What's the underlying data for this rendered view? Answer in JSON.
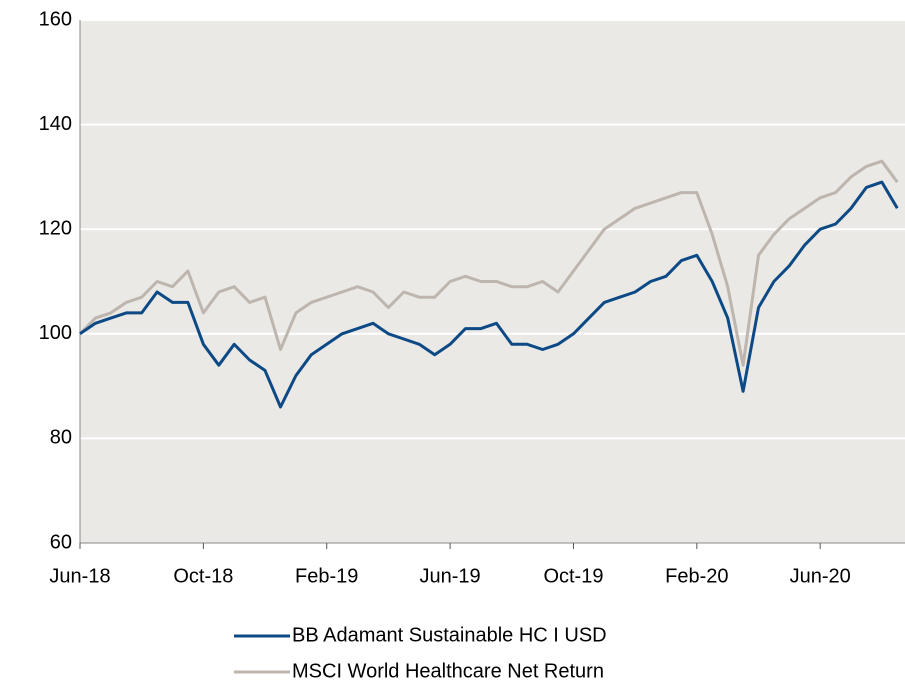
{
  "chart_data": {
    "type": "line",
    "categories": [
      "Jun-18",
      null,
      null,
      null,
      null,
      null,
      null,
      null,
      "Oct-18",
      null,
      null,
      null,
      null,
      null,
      null,
      null,
      "Feb-19",
      null,
      null,
      null,
      null,
      null,
      null,
      null,
      "Jun-19",
      null,
      null,
      null,
      null,
      null,
      null,
      null,
      "Oct-19",
      null,
      null,
      null,
      null,
      null,
      null,
      null,
      "Feb-20",
      null,
      null,
      null,
      null,
      null,
      null,
      null,
      "Jun-20",
      null,
      null,
      null,
      null,
      null
    ],
    "series": [
      {
        "name": "BB Adamant Sustainable HC I USD",
        "color": "#0d4a85",
        "values": [
          100,
          102,
          103,
          104,
          104,
          108,
          106,
          106,
          98,
          94,
          98,
          95,
          93,
          86,
          92,
          96,
          98,
          100,
          101,
          102,
          100,
          99,
          98,
          96,
          98,
          101,
          101,
          102,
          98,
          98,
          97,
          98,
          100,
          103,
          106,
          107,
          108,
          110,
          111,
          114,
          115,
          110,
          103,
          89,
          105,
          110,
          113,
          117,
          120,
          121,
          124,
          128,
          129,
          124
        ]
      },
      {
        "name": "MSCI World Healthcare Net Return",
        "color": "#bdb5ae",
        "values": [
          100,
          103,
          104,
          106,
          107,
          110,
          109,
          112,
          104,
          108,
          109,
          106,
          107,
          97,
          104,
          106,
          107,
          108,
          109,
          108,
          105,
          108,
          107,
          107,
          110,
          111,
          110,
          110,
          109,
          109,
          110,
          108,
          112,
          116,
          120,
          122,
          124,
          125,
          126,
          127,
          127,
          119,
          109,
          94,
          115,
          119,
          122,
          124,
          126,
          127,
          130,
          132,
          133,
          129
        ]
      }
    ],
    "ylim": [
      60,
      160
    ],
    "yticks": [
      60,
      80,
      100,
      120,
      140,
      160
    ],
    "grid": true,
    "legend": "bottom"
  }
}
